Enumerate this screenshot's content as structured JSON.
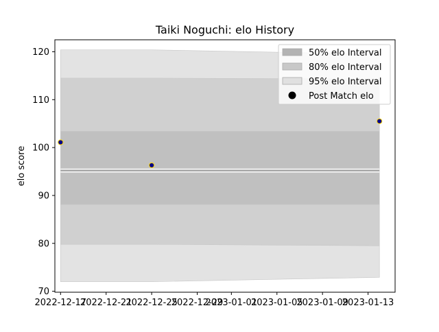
{
  "chart_data": {
    "type": "area",
    "title": "Taiki Noguchi: elo History",
    "xlabel": "",
    "ylabel": "elo score",
    "ylim": [
      69.8,
      122.5
    ],
    "xlim": [
      "2022-12-16T12:00",
      "2023-01-15T09:00"
    ],
    "x_ticks": [
      {
        "date": "2022-12-17",
        "label": "2022-12-17"
      },
      {
        "date": "2022-12-21",
        "label": "2022-12-21"
      },
      {
        "date": "2022-12-25",
        "label": "2022-12-25"
      },
      {
        "date": "2022-12-29",
        "label": "2022-12-29"
      },
      {
        "date": "2023-01-01",
        "label": "2023-01-01"
      },
      {
        "date": "2023-01-05",
        "label": "2023-01-05"
      },
      {
        "date": "2023-01-09",
        "label": "2023-01-09"
      },
      {
        "date": "2023-01-13",
        "label": "2023-01-13"
      }
    ],
    "y_ticks": [
      70,
      80,
      90,
      100,
      110,
      120
    ],
    "x": [
      "2022-12-17",
      "2022-12-25",
      "2023-01-14"
    ],
    "bands": [
      {
        "name": "95% elo Interval",
        "color": "#e3e3e3",
        "lower": [
          72.0,
          72.0,
          72.9
        ],
        "upper": [
          120.4,
          120.4,
          119.5
        ]
      },
      {
        "name": "80% elo Interval",
        "color": "#d0d0d0",
        "lower": [
          79.8,
          79.8,
          79.5
        ],
        "upper": [
          114.5,
          114.5,
          114.3
        ]
      },
      {
        "name": "50% elo Interval",
        "color": "#c0c0c0",
        "lower": [
          88.1,
          88.1,
          88.1
        ],
        "upper": [
          103.4,
          103.4,
          103.4
        ]
      }
    ],
    "mean_line": {
      "values": [
        95.2,
        95.2,
        95.2
      ],
      "color": "#9a9a9a"
    },
    "series": [
      {
        "name": "Post Match elo",
        "x": [
          "2022-12-17",
          "2022-12-25",
          "2023-01-14"
        ],
        "values": [
          101.1,
          96.3,
          105.5
        ],
        "color": "#00008b",
        "edge": "#ffd700"
      }
    ],
    "legend": {
      "placement": "top-right",
      "entries": [
        {
          "label": "50% elo Interval",
          "kind": "patch",
          "color": "#b3b3b3"
        },
        {
          "label": "80% elo Interval",
          "kind": "patch",
          "color": "#c8c8c8"
        },
        {
          "label": "95% elo Interval",
          "kind": "patch",
          "color": "#e0e0e0"
        },
        {
          "label": "Post Match elo",
          "kind": "marker",
          "color": "#000000"
        }
      ]
    },
    "grid": false
  }
}
